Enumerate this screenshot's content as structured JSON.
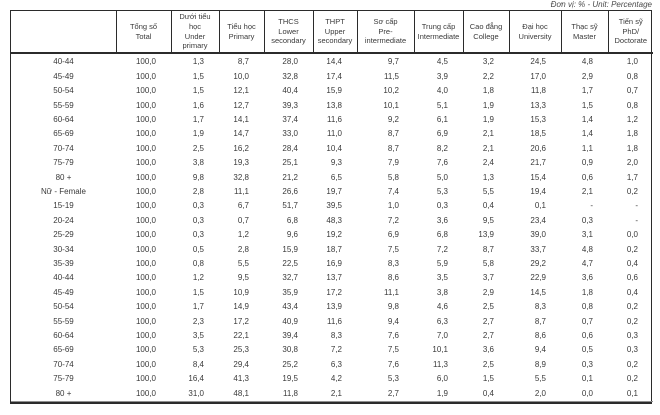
{
  "unit_note": "Đơn vị: % - Unit: Percentage",
  "table": {
    "corner_label": "",
    "headers": [
      "Tổng số\nTotal",
      "Dưới tiểu học\nUnder\nprimary",
      "Tiểu học\nPrimary",
      "THCS\nLower\nsecondary",
      "THPT\nUpper\nsecondary",
      "Sơ cấp\nPre-\nintermediate",
      "Trung cấp\nIntermediate",
      "Cao đẳng\nCollege",
      "Đại học\nUniversity",
      "Thạc sỹ\nMaster",
      "Tiến sỹ\nPhD/\nDoctorate"
    ],
    "rows": [
      {
        "label": "40-44",
        "values": [
          "100,0",
          "1,3",
          "8,7",
          "28,0",
          "14,4",
          "9,7",
          "4,5",
          "3,2",
          "24,5",
          "4,8",
          "1,0"
        ]
      },
      {
        "label": "45-49",
        "values": [
          "100,0",
          "1,5",
          "10,0",
          "32,8",
          "17,4",
          "11,5",
          "3,9",
          "2,2",
          "17,0",
          "2,9",
          "0,8"
        ]
      },
      {
        "label": "50-54",
        "values": [
          "100,0",
          "1,5",
          "12,1",
          "40,4",
          "15,9",
          "10,2",
          "4,0",
          "1,8",
          "11,8",
          "1,7",
          "0,7"
        ]
      },
      {
        "label": "55-59",
        "values": [
          "100,0",
          "1,6",
          "12,7",
          "39,3",
          "13,8",
          "10,1",
          "5,1",
          "1,9",
          "13,3",
          "1,5",
          "0,8"
        ]
      },
      {
        "label": "60-64",
        "values": [
          "100,0",
          "1,7",
          "14,1",
          "37,4",
          "11,6",
          "9,2",
          "6,1",
          "1,9",
          "15,3",
          "1,4",
          "1,2"
        ]
      },
      {
        "label": "65-69",
        "values": [
          "100,0",
          "1,9",
          "14,7",
          "33,0",
          "11,0",
          "8,7",
          "6,9",
          "2,1",
          "18,5",
          "1,4",
          "1,8"
        ]
      },
      {
        "label": "70-74",
        "values": [
          "100,0",
          "2,5",
          "16,2",
          "28,4",
          "10,4",
          "8,7",
          "8,2",
          "2,1",
          "20,6",
          "1,1",
          "1,8"
        ]
      },
      {
        "label": "75-79",
        "values": [
          "100,0",
          "3,8",
          "19,3",
          "25,1",
          "9,3",
          "7,9",
          "7,6",
          "2,4",
          "21,7",
          "0,9",
          "2,0"
        ]
      },
      {
        "label": "80 +",
        "values": [
          "100,0",
          "9,8",
          "32,8",
          "21,2",
          "6,5",
          "5,8",
          "5,0",
          "1,3",
          "15,4",
          "0,6",
          "1,7"
        ]
      },
      {
        "label": "Nữ - Female",
        "values": [
          "100,0",
          "2,8",
          "11,1",
          "26,6",
          "19,7",
          "7,4",
          "5,3",
          "5,5",
          "19,4",
          "2,1",
          "0,2"
        ]
      },
      {
        "label": "15-19",
        "values": [
          "100,0",
          "0,3",
          "6,7",
          "51,7",
          "39,5",
          "1,0",
          "0,3",
          "0,4",
          "0,1",
          "-",
          "-"
        ]
      },
      {
        "label": "20-24",
        "values": [
          "100,0",
          "0,3",
          "0,7",
          "6,8",
          "48,3",
          "7,2",
          "3,6",
          "9,5",
          "23,4",
          "0,3",
          "-"
        ]
      },
      {
        "label": "25-29",
        "values": [
          "100,0",
          "0,3",
          "1,2",
          "9,6",
          "19,2",
          "6,9",
          "6,8",
          "13,9",
          "39,0",
          "3,1",
          "0,0"
        ]
      },
      {
        "label": "30-34",
        "values": [
          "100,0",
          "0,5",
          "2,8",
          "15,9",
          "18,7",
          "7,5",
          "7,2",
          "8,7",
          "33,7",
          "4,8",
          "0,2"
        ]
      },
      {
        "label": "35-39",
        "values": [
          "100,0",
          "0,8",
          "5,5",
          "22,5",
          "16,9",
          "8,3",
          "5,9",
          "5,8",
          "29,2",
          "4,7",
          "0,4"
        ]
      },
      {
        "label": "40-44",
        "values": [
          "100,0",
          "1,2",
          "9,5",
          "32,7",
          "13,7",
          "8,6",
          "3,5",
          "3,7",
          "22,9",
          "3,6",
          "0,6"
        ]
      },
      {
        "label": "45-49",
        "values": [
          "100,0",
          "1,5",
          "10,9",
          "35,9",
          "17,2",
          "11,1",
          "3,8",
          "2,9",
          "14,5",
          "1,8",
          "0,4"
        ]
      },
      {
        "label": "50-54",
        "values": [
          "100,0",
          "1,7",
          "14,9",
          "43,4",
          "13,9",
          "9,8",
          "4,6",
          "2,5",
          "8,3",
          "0,8",
          "0,2"
        ]
      },
      {
        "label": "55-59",
        "values": [
          "100,0",
          "2,3",
          "17,2",
          "40,9",
          "11,6",
          "9,4",
          "6,3",
          "2,7",
          "8,7",
          "0,7",
          "0,2"
        ]
      },
      {
        "label": "60-64",
        "values": [
          "100,0",
          "3,5",
          "22,1",
          "39,4",
          "8,3",
          "7,6",
          "7,0",
          "2,7",
          "8,6",
          "0,6",
          "0,3"
        ]
      },
      {
        "label": "65-69",
        "values": [
          "100,0",
          "5,3",
          "25,3",
          "30,8",
          "7,2",
          "7,5",
          "10,1",
          "3,6",
          "9,4",
          "0,5",
          "0,3"
        ]
      },
      {
        "label": "70-74",
        "values": [
          "100,0",
          "8,4",
          "29,4",
          "25,2",
          "6,3",
          "7,6",
          "11,3",
          "2,5",
          "8,9",
          "0,3",
          "0,2"
        ]
      },
      {
        "label": "75-79",
        "values": [
          "100,0",
          "16,4",
          "41,3",
          "19,5",
          "4,2",
          "5,3",
          "6,0",
          "1,5",
          "5,5",
          "0,1",
          "0,2"
        ]
      },
      {
        "label": "80 +",
        "values": [
          "100,0",
          "31,0",
          "48,1",
          "11,8",
          "2,1",
          "2,7",
          "1,9",
          "0,4",
          "2,0",
          "0,0",
          "0,1"
        ]
      }
    ]
  }
}
